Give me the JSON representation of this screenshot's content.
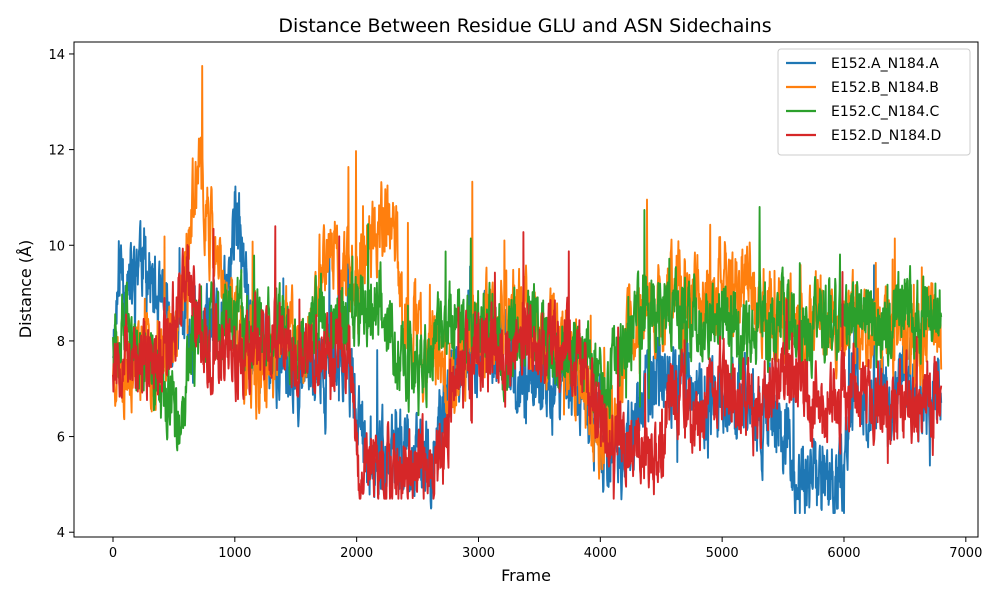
{
  "chart_data": {
    "type": "line",
    "title": "Distance Between Residue GLU and ASN Sidechains",
    "xlabel": "Frame",
    "ylabel": "Distance (Å)",
    "xlim": [
      -320,
      7100
    ],
    "ylim": [
      3.9,
      14.25
    ],
    "xticks": [
      0,
      1000,
      2000,
      3000,
      4000,
      5000,
      6000,
      7000
    ],
    "yticks": [
      4,
      6,
      8,
      10,
      12,
      14
    ],
    "grid": false,
    "legend_position": "top-right",
    "frames": 6800,
    "series": [
      {
        "name": "E152.A_N184.A",
        "color": "#1f77b4",
        "anchors": [
          [
            0,
            8.0
          ],
          [
            60,
            9.6
          ],
          [
            150,
            9.0
          ],
          [
            220,
            10.0
          ],
          [
            300,
            9.3
          ],
          [
            380,
            8.6
          ],
          [
            480,
            8.0
          ],
          [
            560,
            8.6
          ],
          [
            650,
            8.0
          ],
          [
            760,
            8.4
          ],
          [
            860,
            8.2
          ],
          [
            950,
            9.0
          ],
          [
            1000,
            10.6
          ],
          [
            1060,
            9.8
          ],
          [
            1150,
            8.0
          ],
          [
            1250,
            7.8
          ],
          [
            1350,
            7.5
          ],
          [
            1450,
            7.6
          ],
          [
            1550,
            7.3
          ],
          [
            1650,
            7.5
          ],
          [
            1750,
            7.2
          ],
          [
            1850,
            7.6
          ],
          [
            1950,
            7.4
          ],
          [
            2000,
            6.4
          ],
          [
            2100,
            5.8
          ],
          [
            2200,
            5.6
          ],
          [
            2300,
            5.5
          ],
          [
            2400,
            5.7
          ],
          [
            2500,
            5.6
          ],
          [
            2600,
            5.4
          ],
          [
            2700,
            6.2
          ],
          [
            2800,
            7.4
          ],
          [
            2900,
            7.6
          ],
          [
            3000,
            7.8
          ],
          [
            3100,
            8.0
          ],
          [
            3200,
            7.8
          ],
          [
            3300,
            7.2
          ],
          [
            3400,
            7.4
          ],
          [
            3500,
            7.2
          ],
          [
            3600,
            7.0
          ],
          [
            3700,
            7.3
          ],
          [
            3800,
            7.0
          ],
          [
            3900,
            6.6
          ],
          [
            4000,
            6.0
          ],
          [
            4100,
            5.4
          ],
          [
            4200,
            5.6
          ],
          [
            4300,
            6.4
          ],
          [
            4400,
            7.0
          ],
          [
            4500,
            7.4
          ],
          [
            4600,
            7.0
          ],
          [
            4700,
            7.4
          ],
          [
            4800,
            6.8
          ],
          [
            4900,
            6.6
          ],
          [
            5000,
            7.0
          ],
          [
            5100,
            6.6
          ],
          [
            5200,
            6.9
          ],
          [
            5300,
            6.2
          ],
          [
            5400,
            6.6
          ],
          [
            5500,
            6.0
          ],
          [
            5600,
            5.1
          ],
          [
            5700,
            5.0
          ],
          [
            5800,
            5.0
          ],
          [
            5900,
            5.2
          ],
          [
            6000,
            5.1
          ],
          [
            6040,
            6.6
          ],
          [
            6100,
            7.0
          ],
          [
            6200,
            6.8
          ],
          [
            6300,
            7.0
          ],
          [
            6400,
            6.8
          ],
          [
            6500,
            7.2
          ],
          [
            6600,
            6.6
          ],
          [
            6700,
            6.8
          ],
          [
            6790,
            7.0
          ]
        ],
        "noise": 0.85,
        "seed": 11,
        "min": 4.4,
        "max": 12.6
      },
      {
        "name": "E152.B_N184.B",
        "color": "#ff7f0e",
        "anchors": [
          [
            0,
            7.6
          ],
          [
            100,
            7.4
          ],
          [
            200,
            7.8
          ],
          [
            300,
            7.6
          ],
          [
            400,
            7.9
          ],
          [
            500,
            8.2
          ],
          [
            600,
            9.6
          ],
          [
            680,
            11.4
          ],
          [
            750,
            11.0
          ],
          [
            830,
            9.8
          ],
          [
            900,
            9.0
          ],
          [
            1000,
            8.4
          ],
          [
            1100,
            7.6
          ],
          [
            1200,
            7.2
          ],
          [
            1300,
            7.6
          ],
          [
            1400,
            8.2
          ],
          [
            1500,
            8.0
          ],
          [
            1600,
            7.8
          ],
          [
            1700,
            9.6
          ],
          [
            1800,
            10.0
          ],
          [
            1900,
            9.4
          ],
          [
            2000,
            9.6
          ],
          [
            2100,
            10.0
          ],
          [
            2200,
            10.4
          ],
          [
            2300,
            10.6
          ],
          [
            2380,
            8.6
          ],
          [
            2500,
            8.0
          ],
          [
            2600,
            7.8
          ],
          [
            2700,
            7.2
          ],
          [
            2800,
            7.4
          ],
          [
            2900,
            8.0
          ],
          [
            3000,
            8.4
          ],
          [
            3100,
            8.6
          ],
          [
            3200,
            8.2
          ],
          [
            3300,
            8.8
          ],
          [
            3400,
            8.4
          ],
          [
            3500,
            8.0
          ],
          [
            3600,
            8.2
          ],
          [
            3700,
            7.8
          ],
          [
            3800,
            7.4
          ],
          [
            3900,
            6.8
          ],
          [
            4000,
            6.0
          ],
          [
            4100,
            6.2
          ],
          [
            4200,
            7.8
          ],
          [
            4300,
            8.6
          ],
          [
            4400,
            8.8
          ],
          [
            4500,
            8.6
          ],
          [
            4600,
            9.2
          ],
          [
            4700,
            9.0
          ],
          [
            4800,
            8.8
          ],
          [
            4900,
            9.0
          ],
          [
            5000,
            9.4
          ],
          [
            5100,
            9.0
          ],
          [
            5200,
            9.4
          ],
          [
            5300,
            8.6
          ],
          [
            5400,
            8.8
          ],
          [
            5500,
            8.4
          ],
          [
            5600,
            8.6
          ],
          [
            5700,
            8.2
          ],
          [
            5800,
            8.6
          ],
          [
            5900,
            8.4
          ],
          [
            6000,
            8.2
          ],
          [
            6100,
            8.6
          ],
          [
            6200,
            8.0
          ],
          [
            6300,
            8.4
          ],
          [
            6400,
            8.0
          ],
          [
            6500,
            8.2
          ],
          [
            6600,
            7.6
          ],
          [
            6700,
            8.4
          ],
          [
            6790,
            8.0
          ]
        ],
        "noise": 0.85,
        "seed": 23,
        "min": 4.8,
        "max": 13.8
      },
      {
        "name": "E152.C_N184.C",
        "color": "#2ca02c",
        "anchors": [
          [
            0,
            8.4
          ],
          [
            100,
            8.2
          ],
          [
            200,
            7.6
          ],
          [
            300,
            7.4
          ],
          [
            400,
            7.0
          ],
          [
            500,
            6.6
          ],
          [
            560,
            5.6
          ],
          [
            620,
            7.6
          ],
          [
            700,
            8.4
          ],
          [
            800,
            8.2
          ],
          [
            900,
            8.4
          ],
          [
            1000,
            8.6
          ],
          [
            1100,
            8.2
          ],
          [
            1200,
            8.4
          ],
          [
            1300,
            8.0
          ],
          [
            1400,
            8.2
          ],
          [
            1500,
            7.8
          ],
          [
            1600,
            8.0
          ],
          [
            1700,
            8.6
          ],
          [
            1800,
            8.4
          ],
          [
            1900,
            8.6
          ],
          [
            2000,
            8.6
          ],
          [
            2100,
            8.8
          ],
          [
            2200,
            8.8
          ],
          [
            2300,
            8.0
          ],
          [
            2400,
            7.4
          ],
          [
            2500,
            7.2
          ],
          [
            2600,
            7.6
          ],
          [
            2700,
            8.2
          ],
          [
            2800,
            8.6
          ],
          [
            2900,
            8.4
          ],
          [
            3000,
            8.4
          ],
          [
            3100,
            8.6
          ],
          [
            3200,
            7.6
          ],
          [
            3300,
            8.2
          ],
          [
            3400,
            8.4
          ],
          [
            3500,
            8.2
          ],
          [
            3600,
            7.8
          ],
          [
            3700,
            8.0
          ],
          [
            3800,
            7.8
          ],
          [
            3900,
            7.6
          ],
          [
            4000,
            7.0
          ],
          [
            4100,
            7.4
          ],
          [
            4200,
            8.0
          ],
          [
            4300,
            8.4
          ],
          [
            4400,
            8.6
          ],
          [
            4500,
            8.8
          ],
          [
            4600,
            8.4
          ],
          [
            4700,
            8.6
          ],
          [
            4800,
            8.2
          ],
          [
            4900,
            8.4
          ],
          [
            5000,
            8.6
          ],
          [
            5100,
            8.2
          ],
          [
            5200,
            8.0
          ],
          [
            5300,
            8.4
          ],
          [
            5400,
            8.2
          ],
          [
            5500,
            8.4
          ],
          [
            5600,
            8.0
          ],
          [
            5700,
            8.2
          ],
          [
            5800,
            8.4
          ],
          [
            5900,
            8.6
          ],
          [
            6000,
            8.2
          ],
          [
            6100,
            8.4
          ],
          [
            6200,
            8.6
          ],
          [
            6300,
            8.2
          ],
          [
            6400,
            8.4
          ],
          [
            6500,
            8.6
          ],
          [
            6600,
            8.4
          ],
          [
            6700,
            8.6
          ],
          [
            6790,
            8.6
          ]
        ],
        "noise": 0.8,
        "seed": 37,
        "min": 4.8,
        "max": 10.8
      },
      {
        "name": "E152.D_N184.D",
        "color": "#d62728",
        "anchors": [
          [
            0,
            7.6
          ],
          [
            100,
            8.0
          ],
          [
            200,
            7.4
          ],
          [
            300,
            7.6
          ],
          [
            400,
            7.8
          ],
          [
            500,
            8.4
          ],
          [
            560,
            9.2
          ],
          [
            640,
            9.0
          ],
          [
            700,
            8.4
          ],
          [
            800,
            7.8
          ],
          [
            900,
            8.0
          ],
          [
            1000,
            7.6
          ],
          [
            1100,
            7.8
          ],
          [
            1200,
            8.0
          ],
          [
            1300,
            7.8
          ],
          [
            1400,
            8.2
          ],
          [
            1500,
            7.6
          ],
          [
            1600,
            7.8
          ],
          [
            1700,
            7.4
          ],
          [
            1800,
            7.8
          ],
          [
            1900,
            7.6
          ],
          [
            1960,
            7.4
          ],
          [
            2000,
            5.4
          ],
          [
            2100,
            5.3
          ],
          [
            2200,
            5.4
          ],
          [
            2300,
            5.3
          ],
          [
            2400,
            5.4
          ],
          [
            2500,
            5.3
          ],
          [
            2600,
            5.4
          ],
          [
            2700,
            5.5
          ],
          [
            2800,
            7.0
          ],
          [
            2900,
            7.6
          ],
          [
            3000,
            7.8
          ],
          [
            3100,
            8.0
          ],
          [
            3200,
            7.4
          ],
          [
            3300,
            8.0
          ],
          [
            3400,
            8.2
          ],
          [
            3500,
            8.0
          ],
          [
            3600,
            7.8
          ],
          [
            3700,
            8.0
          ],
          [
            3800,
            7.6
          ],
          [
            3900,
            7.2
          ],
          [
            4000,
            6.6
          ],
          [
            4100,
            5.8
          ],
          [
            4200,
            6.2
          ],
          [
            4300,
            5.8
          ],
          [
            4400,
            5.6
          ],
          [
            4500,
            5.8
          ],
          [
            4600,
            7.0
          ],
          [
            4700,
            6.6
          ],
          [
            4800,
            6.4
          ],
          [
            4900,
            6.8
          ],
          [
            5000,
            7.2
          ],
          [
            5100,
            6.6
          ],
          [
            5200,
            6.8
          ],
          [
            5300,
            6.4
          ],
          [
            5400,
            6.8
          ],
          [
            5500,
            7.2
          ],
          [
            5600,
            7.6
          ],
          [
            5700,
            6.8
          ],
          [
            5800,
            6.6
          ],
          [
            5900,
            7.0
          ],
          [
            6000,
            6.8
          ],
          [
            6100,
            7.2
          ],
          [
            6200,
            6.8
          ],
          [
            6300,
            7.0
          ],
          [
            6400,
            6.4
          ],
          [
            6500,
            6.8
          ],
          [
            6600,
            6.6
          ],
          [
            6700,
            7.0
          ],
          [
            6790,
            7.0
          ]
        ],
        "noise": 0.8,
        "seed": 53,
        "min": 4.7,
        "max": 12.1
      }
    ]
  }
}
